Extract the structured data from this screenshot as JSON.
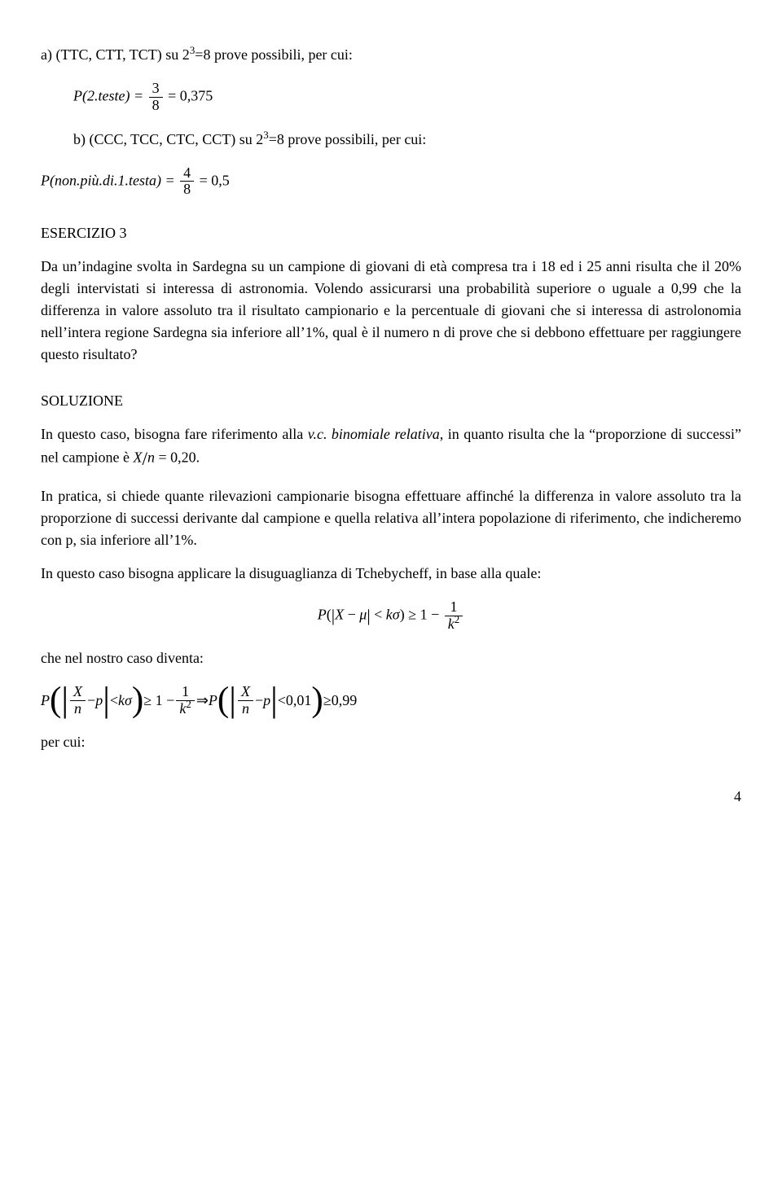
{
  "line_a_intro": "a) (TTC, CTT, TCT) su 2",
  "line_a_exp": "3",
  "line_a_rest": "=8 prove possibili, per cui:",
  "formula_a_left": "P(2.teste) = ",
  "formula_a_num": "3",
  "formula_a_den": "8",
  "formula_a_eq": " = 0,375",
  "line_b_intro": "b) (CCC, TCC, CTC, CCT) su 2",
  "line_b_exp": "3",
  "line_b_rest": "=8 prove possibili, per cui:",
  "formula_b_left": "P(non.più.di.1.testa) = ",
  "formula_b_num": "4",
  "formula_b_den": "8",
  "formula_b_eq": " = 0,5",
  "ex3_title": "ESERCIZIO 3",
  "ex3_para1": "Da un’indagine svolta in Sardegna su un campione di giovani di età compresa tra i 18 ed i 25 anni risulta che il 20% degli intervistati si interessa di astronomia. Volendo assicurarsi una probabilità superiore o uguale a 0,99 che la differenza in valore assoluto tra il risultato campionario e la percentuale di giovani che si interessa di astrolonomia nell’intera regione Sardegna sia inferiore all’1%, qual è il numero n di prove che si debbono effettuare per raggiungere questo risultato?",
  "soluzione_title": "SOLUZIONE",
  "sol_p1_a": "In questo caso, bisogna fare riferimento alla ",
  "sol_p1_b_italic": "v.c. binomiale relativa",
  "sol_p1_c": ", in quanto risulta che la “proporzione di successi” nel campione è ",
  "sol_p1_formula_x": "X",
  "sol_p1_formula_n": "n",
  "sol_p1_formula_val": " = 0,20",
  "sol_p1_end": ".",
  "sol_p2": "In pratica, si chiede quante rilevazioni campionarie bisogna effettuare affinché la differenza in valore assoluto tra la proporzione di successi derivante dal campione e quella relativa all’intera popolazione di riferimento, che indicheremo con p, sia inferiore all’1%.",
  "sol_p3": "In questo caso bisogna applicare la disuguaglianza di Tchebycheff, in base alla quale:",
  "tcheb_P": "P",
  "tcheb_lparen": "(",
  "tcheb_abs1": "|",
  "tcheb_X": "X",
  "tcheb_minus": " − ",
  "tcheb_mu": "μ",
  "tcheb_abs2": "|",
  "tcheb_lt": " < ",
  "tcheb_k": "k",
  "tcheb_sigma": "σ",
  "tcheb_rparen": ")",
  "tcheb_ge": " ≥ 1 − ",
  "tcheb_frac_num": "1",
  "tcheb_frac_den_k": "k",
  "tcheb_frac_den_exp": "2",
  "sol_p4": "che nel nostro caso diventa:",
  "impl_arrow": " ⇒ ",
  "final_p": "p",
  "final_001": "0,01",
  "final_099": "0,99",
  "per_cui": "per cui:",
  "page_number": "4"
}
